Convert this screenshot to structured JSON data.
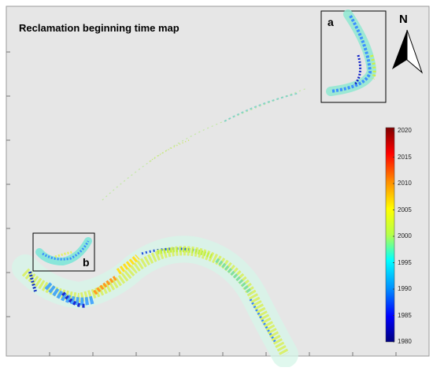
{
  "map": {
    "title": "Reclamation beginning time map",
    "north_label": "N",
    "inset_labels": [
      "a",
      "b"
    ],
    "colorbar": {
      "ticks": [
        "2020",
        "2015",
        "2010",
        "2005",
        "2000",
        "1995",
        "1990",
        "1985",
        "1980"
      ],
      "colors": [
        "#8b0000",
        "#ff0000",
        "#ff9900",
        "#ffff00",
        "#99ff66",
        "#00e5ff",
        "#0080ff",
        "#0000cc",
        "#00007f"
      ]
    },
    "background_color": "#e6e6e6"
  }
}
